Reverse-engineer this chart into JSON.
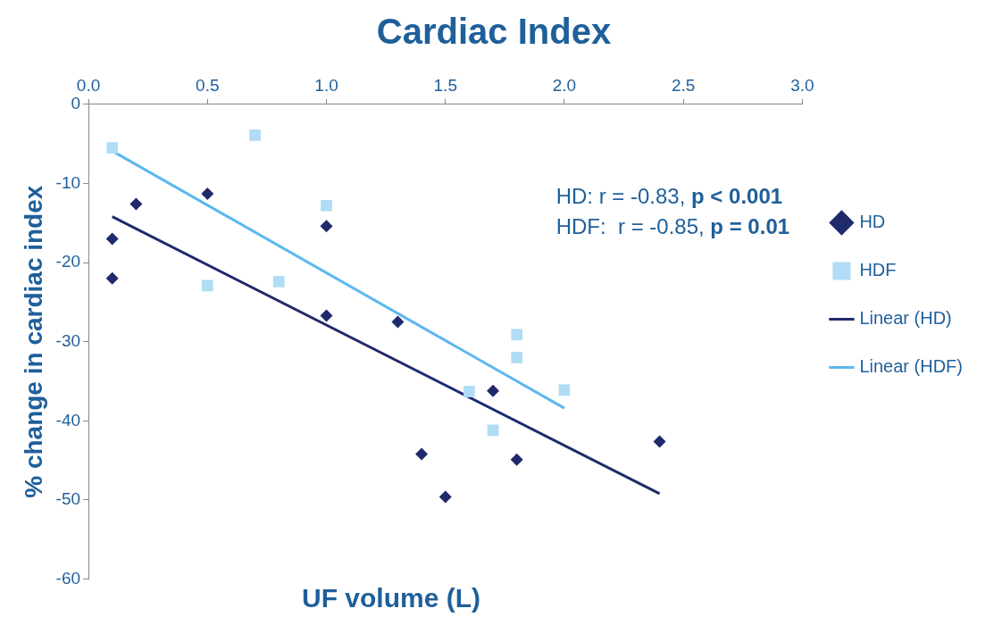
{
  "chart_data": {
    "type": "scatter",
    "title": "Cardiac Index",
    "xlabel": "UF volume (L)",
    "ylabel": "% change in cardiac index",
    "xlim": [
      0,
      3
    ],
    "xticks": [
      {
        "value": 0,
        "label": "0.0"
      },
      0.5,
      {
        "value": 1,
        "label": "1.0"
      },
      1.5,
      {
        "value": 2,
        "label": "2.0"
      },
      2.5,
      {
        "value": 3,
        "label": "3.0"
      }
    ],
    "ylim": [
      -60,
      0
    ],
    "yticks": [
      -60,
      -50,
      -40,
      -30,
      -20,
      -10,
      0
    ],
    "grid": false,
    "legend": "right",
    "annotations": [
      "HD: r = -0.83, p < 0.001",
      "HDF:  r = -0.85, p = 0.01"
    ],
    "series": [
      {
        "name": "HD",
        "marker": "diamond",
        "color": "#1f2a6b",
        "x": [
          0.1,
          0.1,
          0.2,
          0.5,
          1.0,
          1.0,
          1.3,
          1.7,
          1.4,
          1.5,
          1.8,
          2.4
        ],
        "values": [
          -17.0,
          -22.0,
          -12.6,
          -11.3,
          -15.4,
          -26.7,
          -27.5,
          -36.2,
          -44.2,
          -49.6,
          -44.9,
          -42.6
        ]
      },
      {
        "name": "HDF",
        "marker": "square",
        "color": "#b0dcf6",
        "x": [
          0.1,
          0.7,
          0.5,
          0.8,
          1.0,
          1.6,
          1.7,
          1.8,
          1.8,
          2.0
        ],
        "values": [
          -5.5,
          -3.9,
          -22.9,
          -22.4,
          -12.8,
          -36.3,
          -41.2,
          -29.1,
          -32.0,
          -36.1
        ]
      },
      {
        "name": "Linear (HD)",
        "type": "line",
        "marker": "none",
        "color": "#1f2a6b",
        "x": [
          0.1,
          2.4
        ],
        "values": [
          -14.2,
          -49.2
        ]
      },
      {
        "name": "Linear (HDF)",
        "type": "line",
        "marker": "none",
        "color": "#5bb8f0",
        "x": [
          0.1,
          2.0
        ],
        "values": [
          -5.9,
          -38.4
        ]
      }
    ]
  }
}
